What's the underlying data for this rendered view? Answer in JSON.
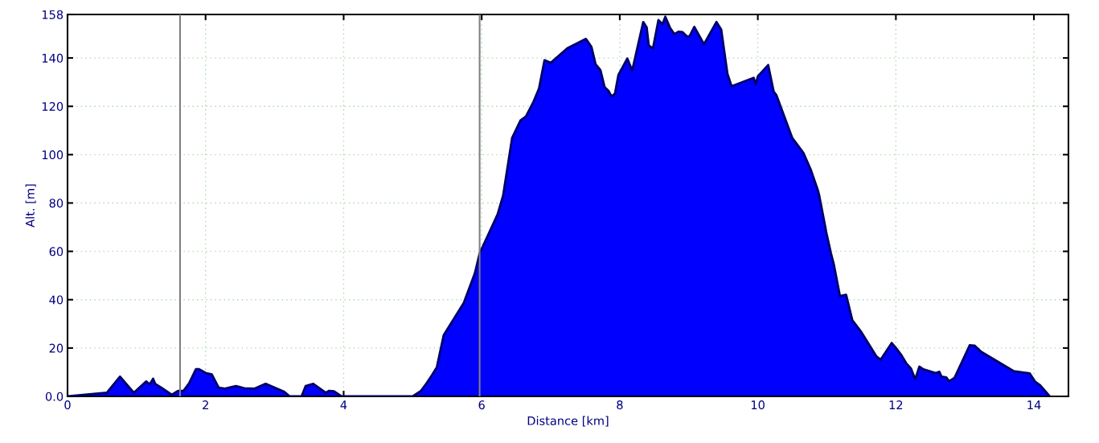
{
  "chart_data": {
    "type": "area",
    "xlabel": "Distance [km]",
    "ylabel": "Alt. [m]",
    "x": [
      0,
      0.57,
      0.76,
      0.96,
      1.14,
      1.19,
      1.24,
      1.27,
      1.35,
      1.51,
      1.6,
      1.68,
      1.76,
      1.86,
      1.9,
      2.01,
      2.09,
      2.19,
      2.28,
      2.44,
      2.56,
      2.71,
      2.87,
      3.14,
      3.22,
      3.39,
      3.45,
      3.56,
      3.74,
      3.79,
      3.86,
      3.97,
      5.0,
      5.12,
      5.2,
      5.28,
      5.35,
      5.45,
      5.74,
      5.9,
      5.97,
      6.23,
      6.31,
      6.44,
      6.56,
      6.64,
      6.75,
      6.83,
      6.91,
      7.0,
      7.24,
      7.51,
      7.59,
      7.65,
      7.72,
      7.78,
      7.84,
      7.88,
      7.93,
      7.98,
      8.11,
      8.18,
      8.34,
      8.39,
      8.42,
      8.48,
      8.56,
      8.62,
      8.66,
      8.73,
      8.79,
      8.85,
      8.91,
      8.97,
      9.01,
      9.08,
      9.22,
      9.4,
      9.47,
      9.56,
      9.62,
      9.94,
      9.97,
      10.0,
      10.15,
      10.23,
      10.27,
      10.5,
      10.66,
      10.77,
      10.87,
      10.89,
      10.98,
      10.99,
      11.06,
      11.1,
      11.19,
      11.28,
      11.37,
      11.49,
      11.72,
      11.78,
      11.94,
      12.0,
      12.08,
      12.15,
      12.22,
      12.28,
      12.34,
      12.4,
      12.58,
      12.63,
      12.66,
      12.73,
      12.77,
      12.85,
      13.07,
      13.14,
      13.24,
      13.71,
      13.94,
      14.02,
      14.09,
      14.23
    ],
    "series": [
      {
        "color": "#0000ff",
        "values": [
          0,
          1.5,
          8.2,
          1.5,
          6.2,
          5,
          7.3,
          5.2,
          3.8,
          0.7,
          2.3,
          2.3,
          5.4,
          11.3,
          11.3,
          9.6,
          9.1,
          3.6,
          3.2,
          4.3,
          3.4,
          3.2,
          5.2,
          1.9,
          0,
          0,
          4.3,
          5.2,
          1.5,
          2.3,
          2.1,
          0,
          0,
          2.3,
          5.4,
          8.8,
          12.1,
          25.4,
          38.7,
          50.9,
          59.2,
          75.3,
          83.1,
          106.9,
          114.1,
          115.8,
          121.9,
          127.4,
          139.1,
          138,
          144,
          147.9,
          144.6,
          137.4,
          135,
          128,
          126.3,
          124.1,
          125.2,
          133,
          139.8,
          134.8,
          154.9,
          152.7,
          145.2,
          143.9,
          155.7,
          154,
          157.1,
          152.4,
          149.9,
          150.9,
          150.7,
          149,
          149,
          152.9,
          145.7,
          154.9,
          151.8,
          133.5,
          128.3,
          131.8,
          129.1,
          132.4,
          137.1,
          126.1,
          124.6,
          106.9,
          100.8,
          93.6,
          85.3,
          83.1,
          69.8,
          68.1,
          59.2,
          54.8,
          41.5,
          42,
          31.5,
          27,
          16.5,
          15.2,
          22.1,
          20.1,
          17.1,
          13.7,
          11.5,
          7.1,
          12.3,
          11.2,
          9.6,
          10.2,
          8.2,
          7.9,
          6.3,
          7.7,
          21.2,
          21,
          18.4,
          10.4,
          9.5,
          6,
          4.6,
          0
        ]
      }
    ],
    "xlim": [
      0,
      14.5
    ],
    "xticks": [
      0,
      2,
      4,
      6,
      8,
      10,
      12,
      14
    ],
    "ylim": [
      0,
      158
    ],
    "yticks": [
      {
        "value": 0,
        "label": "0.0"
      },
      20,
      40,
      60,
      80,
      100,
      120,
      140,
      158
    ],
    "grid": true,
    "ref_lines": [
      {
        "axis": "x",
        "value": 1.63,
        "color": "#808080"
      },
      {
        "axis": "x",
        "value": 5.97,
        "color": "#808080"
      }
    ]
  }
}
